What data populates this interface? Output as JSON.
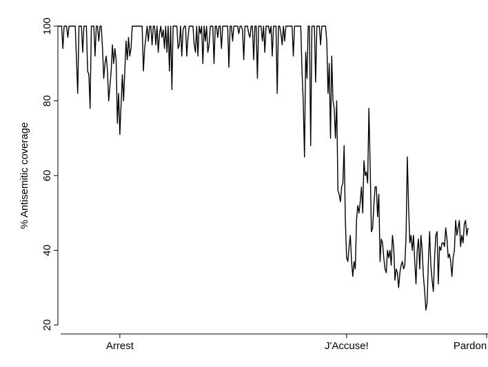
{
  "chart_data": {
    "type": "line",
    "title": "",
    "xlabel": "",
    "ylabel": "% Antisemitic coverage",
    "ylim": [
      20,
      100
    ],
    "xlim": [
      0,
      346
    ],
    "y_ticks": [
      20,
      40,
      60,
      80,
      100
    ],
    "x_ticks": [
      {
        "label": "Arrest",
        "x": 50
      },
      {
        "label": "J'Accuse!",
        "x": 233
      },
      {
        "label": "Pardon",
        "x": 346
      }
    ],
    "grid": false,
    "legend": "none",
    "series": [
      {
        "values": [
          100,
          100,
          100,
          100,
          94,
          100,
          100,
          100,
          97,
          100,
          100,
          100,
          100,
          100,
          100,
          91,
          82,
          100,
          100,
          100,
          93,
          100,
          100,
          100,
          88,
          87,
          78,
          100,
          100,
          100,
          92,
          100,
          100,
          96,
          100,
          100,
          94,
          86,
          90,
          92,
          88,
          80,
          84,
          88,
          95,
          90,
          94,
          91,
          74,
          82,
          71,
          79,
          87,
          80,
          88,
          96,
          91,
          97,
          92,
          94,
          100,
          100,
          100,
          100,
          100,
          100,
          100,
          100,
          100,
          88,
          94,
          97,
          100,
          96,
          100,
          100,
          95,
          100,
          100,
          95,
          100,
          93,
          98,
          100,
          97,
          99,
          94,
          100,
          93,
          100,
          88,
          100,
          83,
          100,
          100,
          100,
          100,
          94,
          95,
          100,
          92,
          99,
          100,
          100,
          92,
          97,
          100,
          100,
          100,
          100,
          95,
          93,
          100,
          92,
          100,
          98,
          100,
          90,
          100,
          96,
          100,
          93,
          95,
          100,
          100,
          100,
          90,
          100,
          100,
          97,
          100,
          100,
          94,
          100,
          100,
          100,
          100,
          100,
          89,
          100,
          100,
          96,
          100,
          100,
          100,
          100,
          98,
          100,
          100,
          99,
          91,
          100,
          100,
          100,
          98,
          97,
          100,
          100,
          91,
          100,
          100,
          86,
          100,
          100,
          100,
          96,
          100,
          93,
          100,
          100,
          100,
          98,
          100,
          92,
          100,
          100,
          100,
          82,
          100,
          100,
          98,
          95,
          100,
          96,
          100,
          100,
          100,
          100,
          100,
          100,
          92,
          100,
          100,
          100,
          100,
          100,
          100,
          88,
          80,
          65,
          93,
          86,
          100,
          100,
          68,
          100,
          100,
          100,
          85,
          100,
          100,
          100,
          95,
          100,
          100,
          100,
          100,
          96,
          82,
          90,
          70,
          92,
          80,
          78,
          70,
          80,
          56,
          55,
          53,
          57,
          58,
          68,
          48,
          38,
          37,
          41,
          44,
          37,
          33,
          37,
          35,
          48,
          52,
          50,
          53,
          57,
          50,
          64,
          60,
          61,
          58,
          78,
          63,
          45,
          46,
          52,
          57,
          57,
          49,
          55,
          37,
          43,
          42,
          38,
          35,
          34,
          40,
          38,
          40,
          36,
          44,
          41,
          32,
          35,
          34,
          30,
          34,
          36,
          37,
          35,
          36,
          44,
          65,
          52,
          42,
          44,
          40,
          44,
          37,
          31,
          40,
          43,
          35,
          44,
          40,
          33,
          29,
          24,
          26,
          37,
          45,
          36,
          32,
          29,
          38,
          44,
          45,
          31,
          41,
          40,
          42,
          42,
          41,
          46,
          43,
          38,
          39,
          37,
          33,
          38,
          40,
          48,
          44,
          46,
          48,
          41,
          44,
          42,
          47,
          48,
          44,
          46
        ]
      }
    ]
  }
}
